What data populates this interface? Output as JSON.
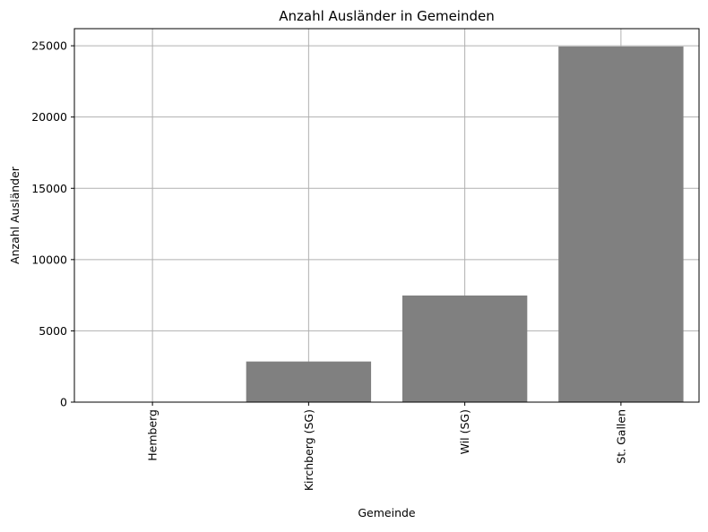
{
  "chart_data": {
    "type": "bar",
    "title": "Anzahl Ausländer in Gemeinden",
    "xlabel": "Gemeinde",
    "ylabel": "Anzahl Ausländer",
    "categories": [
      "Hemberg",
      "Kirchberg (SG)",
      "Wil (SG)",
      "St. Gallen"
    ],
    "values": [
      20,
      2850,
      7480,
      24950
    ],
    "ylim": [
      0,
      26200
    ],
    "yticks": [
      0,
      5000,
      10000,
      15000,
      20000,
      25000
    ],
    "grid": true,
    "bar_color": "#808080",
    "grid_color": "#b0b0b0",
    "x_tick_rotation": "vertical"
  }
}
